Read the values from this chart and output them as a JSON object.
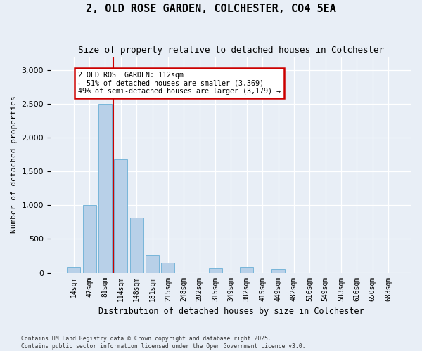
{
  "title1": "2, OLD ROSE GARDEN, COLCHESTER, CO4 5EA",
  "title2": "Size of property relative to detached houses in Colchester",
  "xlabel": "Distribution of detached houses by size in Colchester",
  "ylabel": "Number of detached properties",
  "categories": [
    "14sqm",
    "47sqm",
    "81sqm",
    "114sqm",
    "148sqm",
    "181sqm",
    "215sqm",
    "248sqm",
    "282sqm",
    "315sqm",
    "349sqm",
    "382sqm",
    "415sqm",
    "449sqm",
    "482sqm",
    "516sqm",
    "549sqm",
    "583sqm",
    "616sqm",
    "650sqm",
    "683sqm"
  ],
  "values": [
    75,
    1000,
    2500,
    1680,
    820,
    270,
    150,
    0,
    0,
    65,
    0,
    75,
    0,
    55,
    0,
    0,
    0,
    0,
    0,
    0,
    0
  ],
  "bar_color": "#b8d0e8",
  "bar_edge_color": "#6aafd6",
  "vline_color": "#cc0000",
  "vline_pos": 2.5,
  "annotation_text": "2 OLD ROSE GARDEN: 112sqm\n← 51% of detached houses are smaller (3,369)\n49% of semi-detached houses are larger (3,179) →",
  "annotation_box_facecolor": "#ffffff",
  "annotation_box_edgecolor": "#cc0000",
  "ylim_max": 3200,
  "yticks": [
    0,
    500,
    1000,
    1500,
    2000,
    2500,
    3000
  ],
  "background_color": "#e8eef6",
  "grid_color": "#ffffff",
  "footer1": "Contains HM Land Registry data © Crown copyright and database right 2025.",
  "footer2": "Contains public sector information licensed under the Open Government Licence v3.0."
}
